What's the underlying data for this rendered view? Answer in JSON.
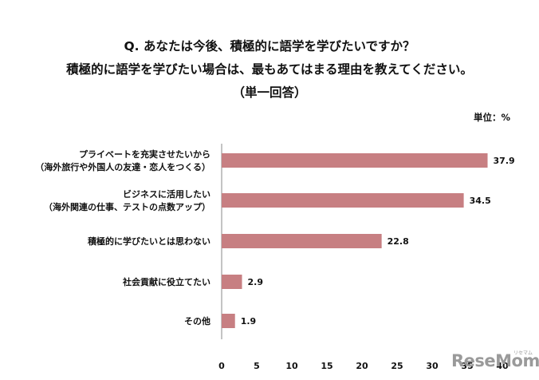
{
  "title": {
    "line1": "Q. あなたは今後、積極的に語学を学びたいですか？",
    "line2": "積極的に語学を学びたい場合は、最もあてはまる理由を教えてください。",
    "line3": "（単一回答）"
  },
  "unit_label": "単位：%",
  "watermark": {
    "text": "ReseMom",
    "sub": "リセマム"
  },
  "colors": {
    "bar": "#c77f82",
    "axis": "#888888",
    "text": "#111111"
  },
  "chart_data": {
    "type": "bar",
    "orientation": "horizontal",
    "categories": [
      [
        "プライベートを充実させたいから",
        "（海外旅行や外国人の友達・恋人をつくる）"
      ],
      [
        "ビジネスに活用したい",
        "（海外関連の仕事、テストの点数アップ）"
      ],
      [
        "積極的に学びたいとは思わない"
      ],
      [
        "社会貢献に役立てたい"
      ],
      [
        "その他"
      ]
    ],
    "values": [
      37.9,
      34.5,
      22.8,
      2.9,
      1.9
    ],
    "value_labels": [
      "37.9",
      "34.5",
      "22.8",
      "2.9",
      "1.9"
    ],
    "xlim": [
      0,
      40
    ],
    "xticks": [
      "0",
      "5",
      "10",
      "15",
      "20",
      "25",
      "30",
      "35",
      "40"
    ],
    "grid": false,
    "legend": "none"
  }
}
